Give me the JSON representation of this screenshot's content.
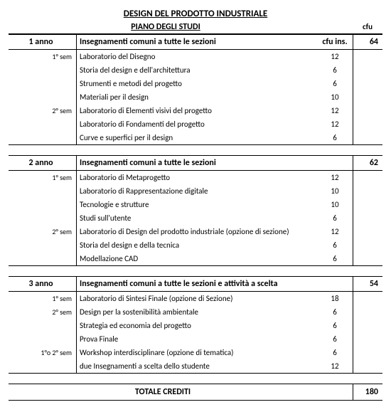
{
  "title": "DESIGN DEL PRODOTTO INDUSTRIALE",
  "subtitle": "PIANO DEGLI STUDI",
  "cfu_header": "cfu",
  "cfu_ins_header": "cfu ins.",
  "common_heading": "Insegnamenti comuni a tutte le sezioni",
  "common_heading_year3": "Insegnamenti comuni a tutte le sezioni e attività a scelta",
  "years": [
    {
      "label": "1 anno",
      "heading": "Insegnamenti comuni a tutte le sezioni",
      "cfu_total": 64,
      "rows": [
        {
          "sem": "1° sem",
          "name": "Laboratorio del Disegno",
          "cfu_ins": 12
        },
        {
          "sem": "",
          "name": "Storia del design e dell'architettura",
          "cfu_ins": 6
        },
        {
          "sem": "",
          "name": "Strumenti e metodi del progetto",
          "cfu_ins": 6
        },
        {
          "sem": "",
          "name": "Materiali per il design",
          "cfu_ins": 10
        },
        {
          "sem": "2° sem",
          "name": "Laboratorio di Elementi visivi del progetto",
          "cfu_ins": 12
        },
        {
          "sem": "",
          "name": "Laboratorio di Fondamenti del progetto",
          "cfu_ins": 12
        },
        {
          "sem": "",
          "name": "Curve e superfici per il design",
          "cfu_ins": 6
        }
      ]
    },
    {
      "label": "2 anno",
      "heading": "Insegnamenti comuni a tutte le sezioni",
      "cfu_total": 62,
      "rows": [
        {
          "sem": "1° sem",
          "name": "Laboratorio di Metaprogetto",
          "cfu_ins": 12
        },
        {
          "sem": "",
          "name": "Laboratorio di Rappresentazione digitale",
          "cfu_ins": 10
        },
        {
          "sem": "",
          "name": "Tecnologie e strutture",
          "cfu_ins": 10
        },
        {
          "sem": "",
          "name": "Studi sull'utente",
          "cfu_ins": 6
        },
        {
          "sem": "2° sem",
          "name": "Laboratorio di Design del prodotto industriale (opzione di sezione)",
          "cfu_ins": 12
        },
        {
          "sem": "",
          "name": "Storia del design e della tecnica",
          "cfu_ins": 6
        },
        {
          "sem": "",
          "name": "Modellazione CAD",
          "cfu_ins": 6
        }
      ]
    },
    {
      "label": "3 anno",
      "heading": "Insegnamenti comuni a tutte le sezioni e attività a scelta",
      "cfu_total": 54,
      "rows": [
        {
          "sem": "1° sem",
          "name": "Laboratorio di Sintesi Finale (opzione di Sezione)",
          "cfu_ins": 18
        },
        {
          "sem": "2° sem",
          "name": "Design per la sostenibilità ambientale",
          "cfu_ins": 6
        },
        {
          "sem": "",
          "name": "Strategia ed economia del progetto",
          "cfu_ins": 6
        },
        {
          "sem": "",
          "name": "Prova Finale",
          "cfu_ins": 6
        },
        {
          "sem": "1°o 2° sem",
          "name": "Workshop interdisciplinare (opzione di tematica)",
          "cfu_ins": 6
        },
        {
          "sem": "",
          "name": "due Insegnamenti a scelta dello studente",
          "cfu_ins": 12
        }
      ]
    }
  ],
  "total_label": "TOTALE CREDITI",
  "total_value": 180
}
